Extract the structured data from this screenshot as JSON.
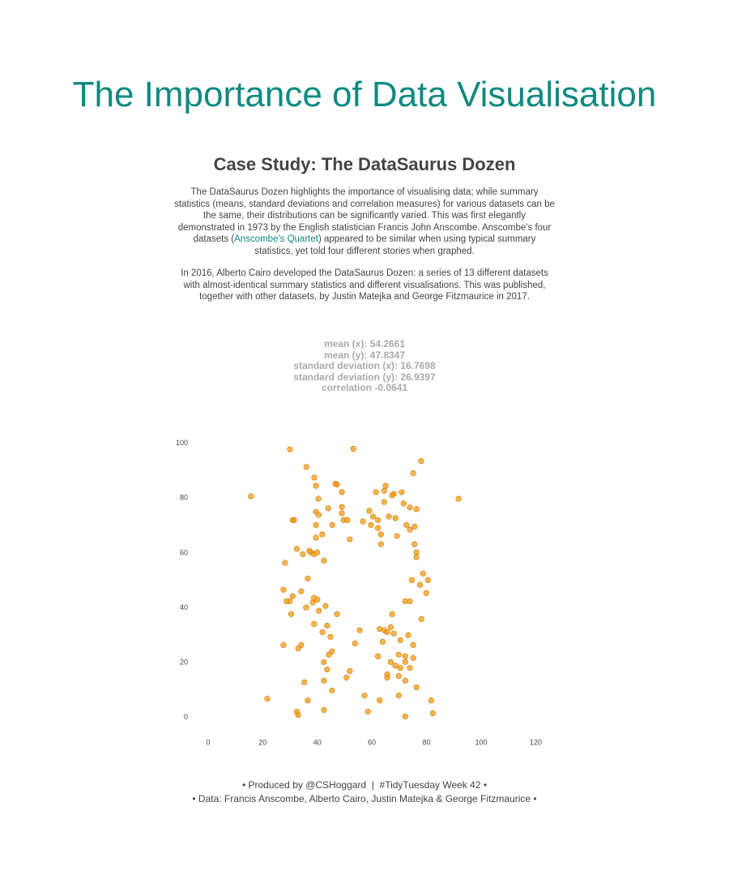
{
  "header": {
    "title": "The Importance of Data Visualisation"
  },
  "case_study": {
    "title": "Case Study: The DataSaurus Dozen",
    "p1_before": "The DataSaurus Dozen highlights the importance of visualising data; while summary statistics (means, standard deviations and correlation measures) for various datasets can be the same, their distributions can be significantly varied. This was first elegantly demonstrated in 1973 by the English statistician Francis John Anscombe. Anscombe's four datasets (",
    "p1_link": "Anscombe's Quartet",
    "p1_after": ") appeared to be similar when using typical summary statistics, yet told four different stories when graphed.",
    "p2": "In 2016, Alberto Cairo developed the DataSaurus Dozen: a series of 13 different datasets with almost-identical summary statistics and different visualisations. This was published, together with other datasets, by Justin Matejka and George Fitzmaurice in 2017."
  },
  "stats": [
    "mean (x): 54.2661",
    "mean (y): 47.8347",
    "standard deviation (x): 16.7698",
    "standard deviation (y): 26.9397",
    "correlation -0.0641"
  ],
  "chart_data": {
    "type": "scatter",
    "color": "#f39c12",
    "stroke": "#c8790a",
    "x": [
      15.7,
      30,
      53.2,
      36,
      38.9,
      39.5,
      47.2,
      46.6,
      49,
      40.4,
      31,
      31.5,
      39.5,
      40.5,
      44,
      49,
      49,
      49.6,
      51,
      39.5,
      45.5,
      41.8,
      39.5,
      51.9,
      32.5,
      34.7,
      37.1,
      37.7,
      38.8,
      40,
      42.4,
      28.2,
      65,
      64.5,
      61.5,
      68,
      67.4,
      70.9,
      78,
      75.1,
      91.7,
      64.5,
      71.6,
      59,
      73.9,
      76.3,
      60.4,
      66.2,
      68.6,
      62.2,
      56.7,
      59.6,
      72.6,
      75.6,
      62.2,
      73.9,
      63.3,
      69.2,
      63.3,
      75.6,
      76.3,
      76.3,
      78.7,
      74.6,
      80.5,
      77.6,
      79.9,
      27.6,
      34.1,
      36.5,
      31,
      29.9,
      28.7,
      38.8,
      40,
      38.3,
      30.4,
      43,
      40.6,
      35.9,
      72.2,
      73.9,
      67.4,
      78.1,
      38.8,
      43.6,
      47.2,
      41.9,
      55.5,
      62.8,
      64.5,
      66.9,
      65.6,
      68,
      73.3,
      44.8,
      63.9,
      70.4,
      75.1,
      53.8,
      27.6,
      34.1,
      33,
      45.4,
      44.2,
      62.2,
      72.2,
      69.8,
      75.1,
      42.4,
      66.9,
      72.2,
      68.6,
      70.4,
      73.9,
      51.9,
      43.6,
      65.6,
      65.6,
      69.8,
      72.2,
      50.7,
      42.4,
      35.3,
      76.3,
      45.4,
      57.3,
      69.8,
      21.7,
      36.5,
      62.8,
      81.7,
      32.5,
      42.4,
      58.5,
      82.3,
      33,
      72.2
    ],
    "values": [
      80.7,
      97.8,
      98,
      91.4,
      87.5,
      84.5,
      85,
      85.3,
      82.2,
      79.8,
      72,
      72,
      75,
      73.9,
      76.3,
      76.8,
      74.5,
      72,
      72,
      70.2,
      70.2,
      66.8,
      65.6,
      65,
      61.5,
      59.6,
      60.8,
      60.2,
      59.6,
      60.2,
      57.2,
      56.4,
      84.5,
      82.7,
      82.2,
      81.6,
      81,
      82.2,
      93.5,
      89.1,
      79.8,
      78.6,
      78.1,
      75.4,
      76.6,
      76,
      73.3,
      73.3,
      72.7,
      72,
      71.5,
      70.2,
      70.2,
      69.6,
      69.1,
      68.5,
      66.8,
      66.2,
      63.2,
      63.2,
      60.2,
      58.5,
      52.5,
      50.1,
      50.1,
      48.4,
      45.4,
      46.6,
      46,
      50.7,
      44.2,
      42.4,
      42.4,
      43.6,
      43,
      41.9,
      37.7,
      40.7,
      38.9,
      40.1,
      42.4,
      42.4,
      37.7,
      35.9,
      34.1,
      33.5,
      37.7,
      31.1,
      31.8,
      32.3,
      31.8,
      32.9,
      31.1,
      30.6,
      30,
      29.4,
      27.6,
      28.2,
      26.4,
      27,
      26.4,
      26.4,
      25.2,
      24.1,
      22.9,
      22.3,
      22.3,
      22.9,
      21.7,
      20.2,
      20.2,
      20.2,
      18.9,
      18.1,
      18.1,
      16.9,
      17.5,
      15.7,
      14.5,
      15.1,
      13.4,
      14.5,
      13.4,
      12.8,
      11,
      9.8,
      8,
      8,
      6.8,
      6.2,
      6.2,
      6.2,
      2.1,
      2.7,
      2.1,
      1.5,
      0.9,
      0.3
    ],
    "xlim": [
      -5,
      124
    ],
    "ylim": [
      -6,
      102
    ],
    "xticks": [
      0,
      20,
      40,
      60,
      80,
      100,
      120
    ],
    "yticks": [
      0,
      20,
      40,
      60,
      80,
      100
    ]
  },
  "footer": {
    "line1": "• Produced by @CSHoggard  |  #TidyTuesday Week 42 •",
    "line2": "• Data: Francis Anscombe, Alberto Cairo, Justin Matejka & George Fitzmaurice •"
  }
}
